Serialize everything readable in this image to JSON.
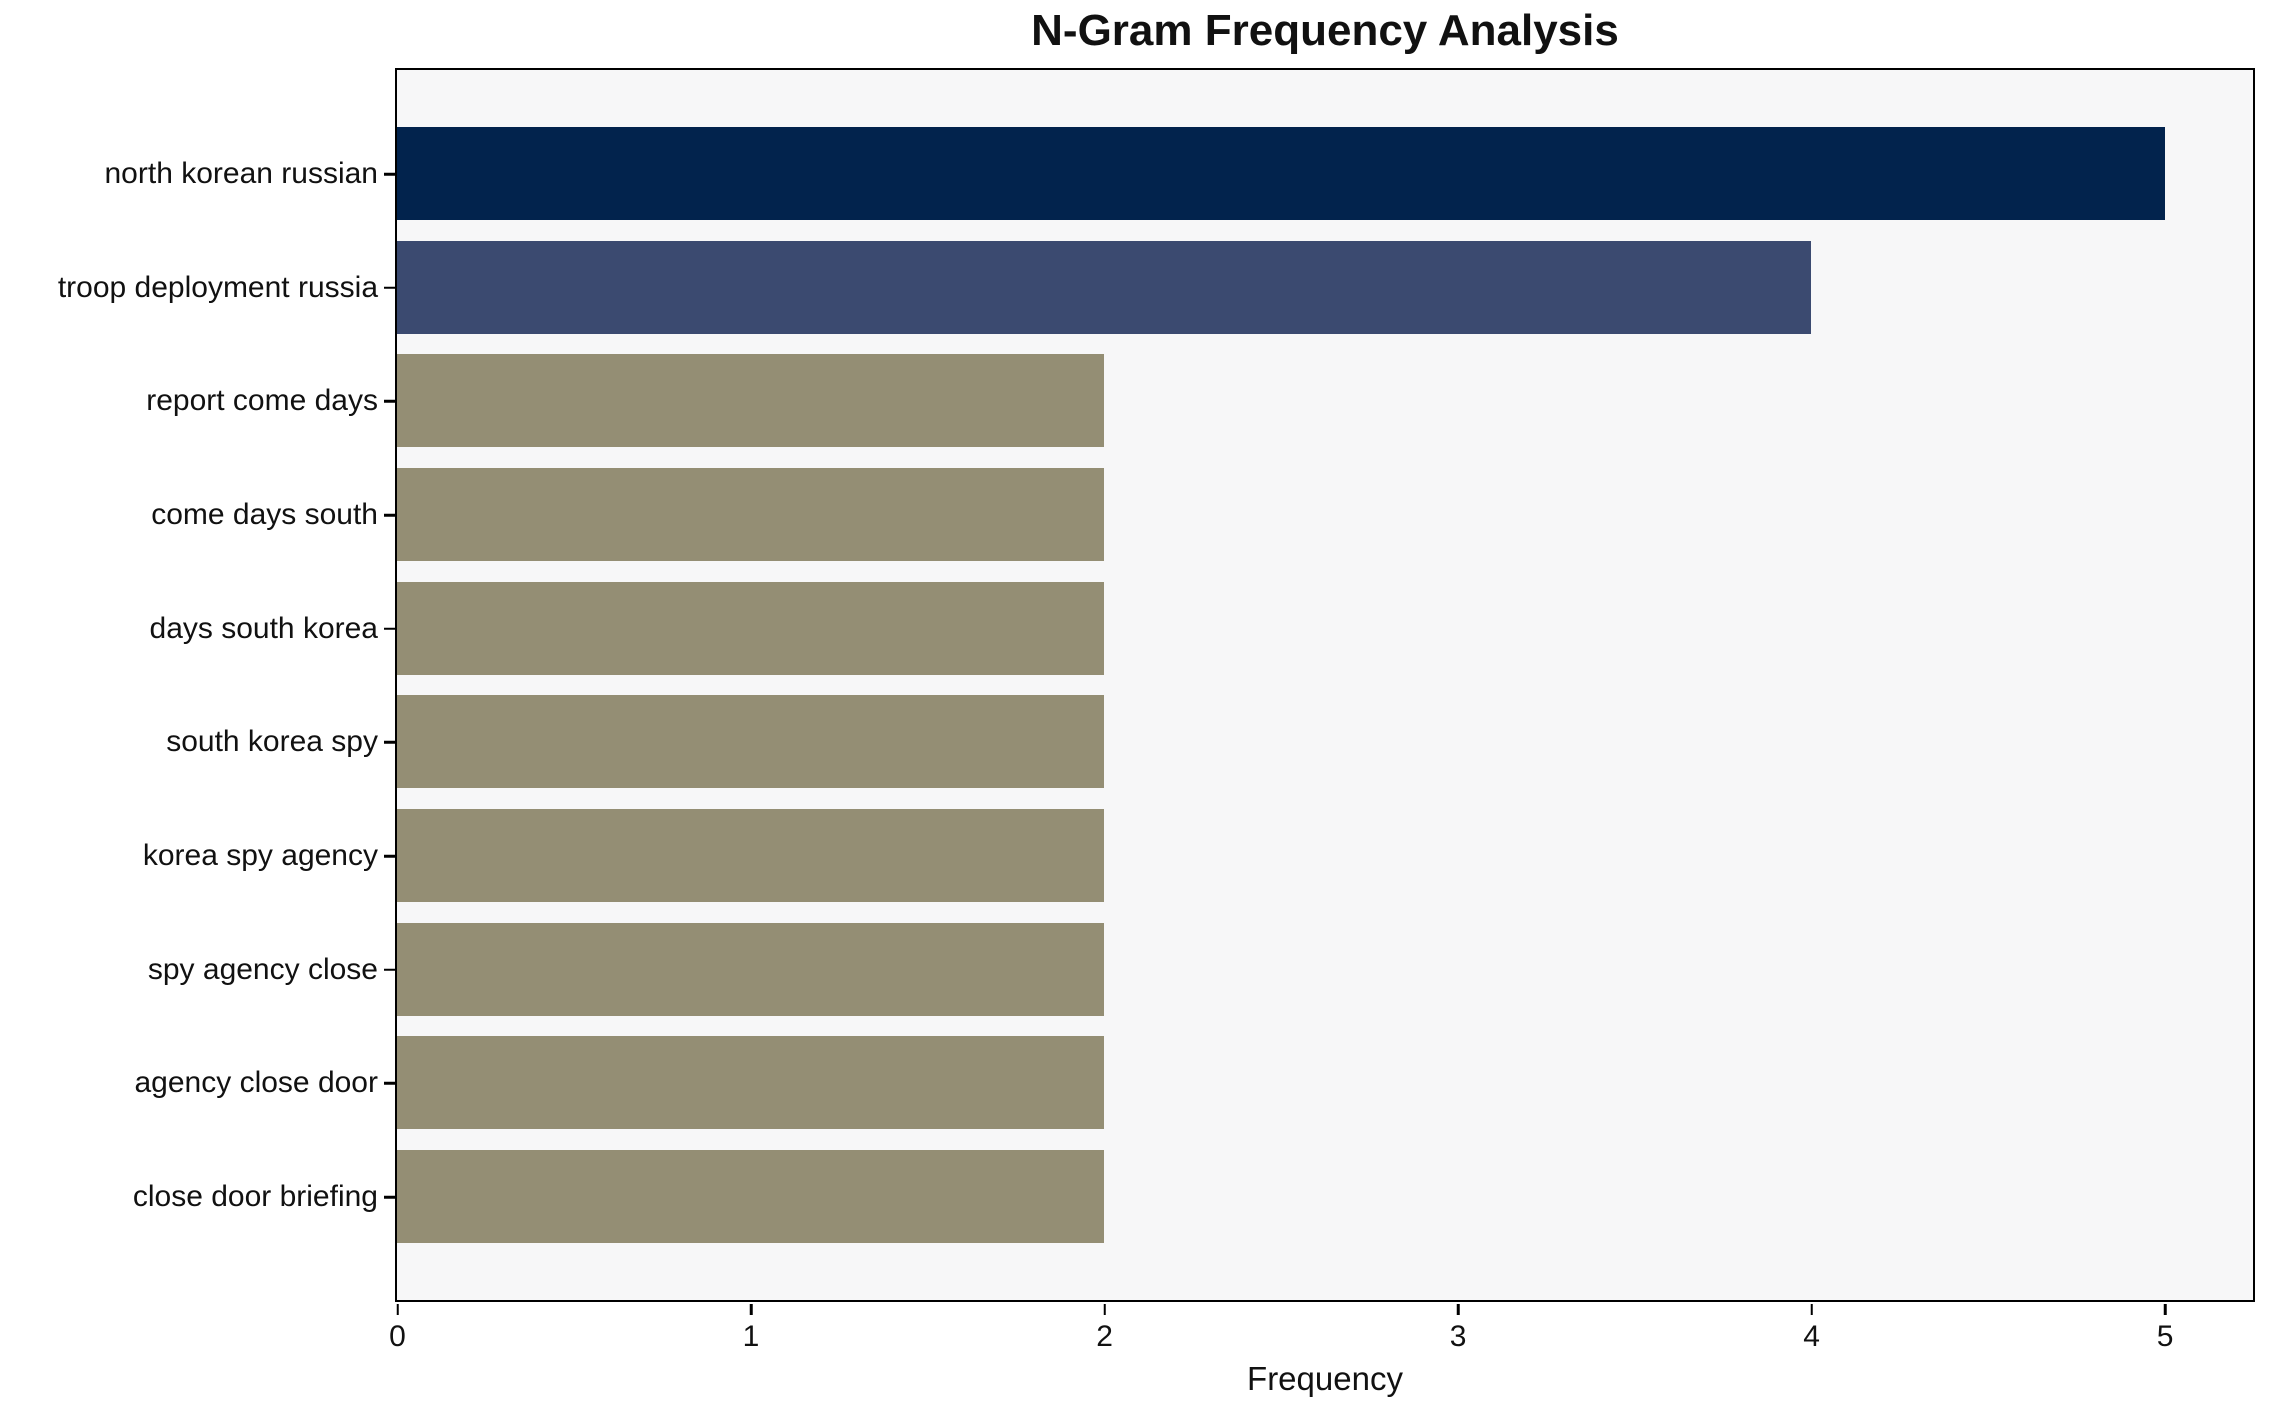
{
  "chart_data": {
    "type": "bar",
    "orientation": "horizontal",
    "title": "N-Gram Frequency Analysis",
    "xlabel": "Frequency",
    "categories": [
      "north korean russian",
      "troop deployment russia",
      "report come days",
      "come days south",
      "days south korea",
      "south korea spy",
      "korea spy agency",
      "spy agency close",
      "agency close door",
      "close door briefing"
    ],
    "values": [
      5,
      4,
      2,
      2,
      2,
      2,
      2,
      2,
      2,
      2
    ],
    "colors": [
      "#02234d",
      "#3b4a70",
      "#948e74",
      "#948e74",
      "#948e74",
      "#948e74",
      "#948e74",
      "#948e74",
      "#948e74",
      "#948e74"
    ],
    "xlim": [
      0,
      5.25
    ],
    "x_ticks": [
      0,
      1,
      2,
      3,
      4,
      5
    ],
    "grid": false,
    "legend_position": "none",
    "plot_background": "#f7f7f8",
    "figure_background": "#ffffff",
    "axis_color": "#000000"
  }
}
